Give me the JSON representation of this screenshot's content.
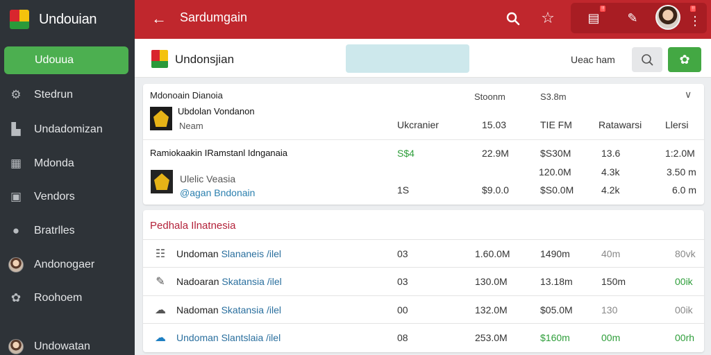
{
  "sidebar": {
    "app_title": "Undouian",
    "active_item": "Udouua",
    "items": [
      {
        "label": "Stedrun",
        "icon": "gear-icon"
      },
      {
        "label": "Undadomizan",
        "icon": "bar-chart-icon"
      },
      {
        "label": "Mdonda",
        "icon": "calendar-icon"
      },
      {
        "label": "Vendors",
        "icon": "id-card-icon"
      },
      {
        "label": "Bratrlles",
        "icon": "chat-icon"
      },
      {
        "label": "Andonogaer",
        "icon": "profile-icon"
      },
      {
        "label": "Roohoem",
        "icon": "settings-icon"
      }
    ],
    "footer_user": "Undowatan"
  },
  "topbar": {
    "title": "Sardumgain",
    "badge1": "!!",
    "badge2": "!!"
  },
  "subheader": {
    "title": "Undonsjian",
    "search_value": "",
    "user_label": "Ueac ham"
  },
  "card1": {
    "heading": "Mdonoain Dianoia",
    "col_header_2": "Stoonm",
    "col_header_3": "S3.8m",
    "row1": {
      "name": "Ubdolan Vondanon",
      "sub": "Neam",
      "c1": "Ukcranier",
      "c2": "15.03",
      "c3": "TIE FM",
      "c4": "Ratawarsi",
      "c5": "Llersi"
    },
    "row2": {
      "name": "Ramiokaakin IRamstanl Idnganaia",
      "c1": "S$4",
      "c2": "22.9M",
      "c3": "$S30M",
      "c4": "13.6",
      "c5": "1:2.0M"
    },
    "row3": {
      "name": "Ulelic Veasia",
      "sub": "@agan Bndonain",
      "c3a": "120.0M",
      "c4a": "4.3k",
      "c5a": "3.50 m",
      "c1": "1S",
      "c2": "$9.0.0",
      "c3": "$S0.0M",
      "c4": "4.2k",
      "c5": "6.0 m"
    }
  },
  "card2": {
    "title": "Pedhala Ilnatnesia",
    "rows": [
      {
        "icon": "list-icon",
        "name_a": "Undoman ",
        "name_b": "Slananeis /ilel",
        "c1": "03",
        "c2": "1.60.0M",
        "c3": "1490m",
        "c4": "40m",
        "c5": "80vk"
      },
      {
        "icon": "edit-icon",
        "name_a": "Nadoaran ",
        "name_b": "Skatansia /ilel",
        "c1": "03",
        "c2": "130.0M",
        "c3": "13.18m",
        "c4": "150m",
        "c5": "00ik"
      },
      {
        "icon": "cloud-icon",
        "name_a": "Nadoman ",
        "name_b": "Skatansia /ilel",
        "c1": "00",
        "c2": "132.0M",
        "c3": "$05.0M",
        "c4": "130",
        "c5": "00ik"
      },
      {
        "icon": "cloud-upload-icon",
        "name_a": "Undoman ",
        "name_b": "Slantslaia /ilel",
        "c1": "08",
        "c2": "253.0M",
        "c3": "$160m",
        "c4": "00m",
        "c5": "00rh"
      }
    ]
  }
}
